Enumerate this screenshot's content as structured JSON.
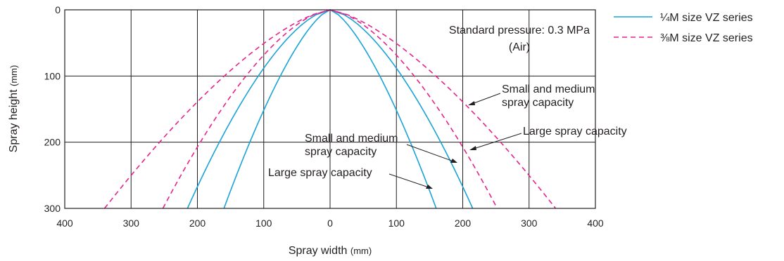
{
  "chart_data": {
    "type": "line",
    "xlabel": "Spray width",
    "xlabel_unit": "(mm)",
    "ylabel": "Spray height",
    "ylabel_unit": "(mm)",
    "xlim": [
      -400,
      400
    ],
    "ylim": [
      0,
      300
    ],
    "y_inverted": true,
    "grid": true,
    "x_ticks": [
      -400,
      -300,
      -200,
      -100,
      0,
      100,
      200,
      300,
      400
    ],
    "x_tick_labels": [
      "400",
      "300",
      "200",
      "100",
      "0",
      "100",
      "200",
      "300",
      "400"
    ],
    "y_ticks": [
      0,
      100,
      200,
      300
    ],
    "y_tick_labels": [
      "0",
      "100",
      "200",
      "300"
    ],
    "legend_position": "top-right",
    "legend": [
      {
        "label": "¼M size VZ series",
        "color": "#1aa3d6",
        "style": "solid"
      },
      {
        "label": "⅜M size VZ series",
        "color": "#e6238c",
        "style": "dashed"
      }
    ],
    "series": [
      {
        "group": "¼M size VZ series",
        "capacity": "Large spray capacity",
        "color": "#1aa3d6",
        "style": "solid",
        "half_width_at_300": 160,
        "shape_exponent": 1.45
      },
      {
        "group": "¼M size VZ series",
        "capacity": "Small and medium spray capacity",
        "color": "#1aa3d6",
        "style": "solid",
        "half_width_at_300": 215,
        "shape_exponent": 1.6
      },
      {
        "group": "⅜M size VZ series",
        "capacity": "Large spray capacity",
        "color": "#e6238c",
        "style": "dashed",
        "half_width_at_300": 340,
        "shape_exponent": 1.45
      },
      {
        "group": "⅜M size VZ series",
        "capacity": "Small and medium spray capacity",
        "color": "#e6238c",
        "style": "dashed",
        "half_width_at_300": 252,
        "shape_exponent": 1.6
      }
    ],
    "annotations": {
      "pressure_line1": "Standard pressure: 0.3 MPa",
      "pressure_line2": "(Air)",
      "right_small_medium_line1": "Small and medium",
      "right_small_medium_line2": "spray capacity",
      "right_large": "Large spray capacity",
      "center_small_medium_line1": "Small and medium",
      "center_small_medium_line2": "spray capacity",
      "center_large": "Large spray capacity"
    }
  }
}
